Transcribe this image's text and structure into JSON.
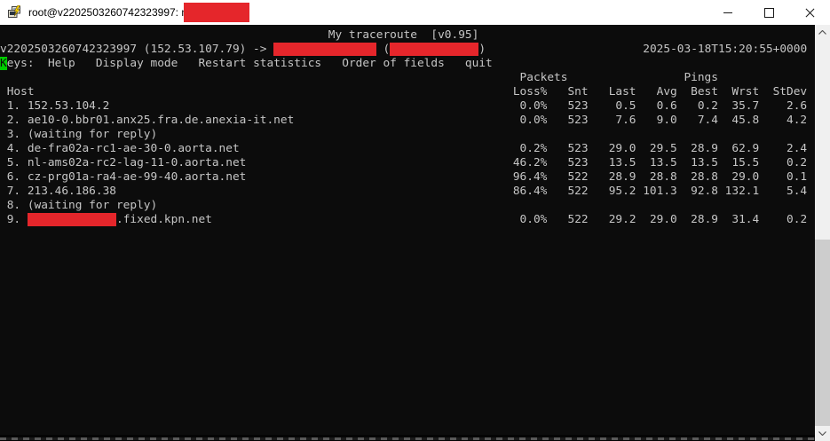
{
  "window": {
    "title": "root@v2202503260742323997: mtr",
    "title_has_redaction": true,
    "icons": {
      "app": "putty-terminal-icon",
      "minimize": "minimize-icon",
      "maximize": "maximize-icon",
      "close": "close-icon",
      "scroll_up": "chevron-up-icon",
      "scroll_down": "chevron-down-icon"
    }
  },
  "terminal": {
    "cols": 118,
    "colors": {
      "bg": "#0c0c0c",
      "fg": "#c6c6c6",
      "cursor": "#00cd00",
      "redact": "#e5262b"
    },
    "app_title": "My traceroute  [v0.95]",
    "source_line": {
      "left": "v2202503260742323997 (152.53.107.79) ->",
      "dest_redact_ch": 15,
      "ip_redact_ch": 13,
      "timestamp": "2025-03-18T15:20:55+0000"
    },
    "keys_line": {
      "cursor_char": "K",
      "rest": "eys:  Help   Display mode   Restart statistics   Order of fields   quit"
    },
    "group_headers": {
      "packets": "Packets",
      "pings": "Pings"
    },
    "columns": {
      "host": "Host",
      "loss": "Loss%",
      "snt": "Snt",
      "last": "Last",
      "avg": "Avg",
      "best": "Best",
      "wrst": "Wrst",
      "stdev": "StDev"
    },
    "rows": [
      {
        "num": "1",
        "host": "152.53.104.2",
        "loss": "0.0%",
        "snt": "523",
        "last": "0.5",
        "avg": "0.6",
        "best": "0.2",
        "wrst": "35.7",
        "stdev": "2.6"
      },
      {
        "num": "2",
        "host": "ae10-0.bbr01.anx25.fra.de.anexia-it.net",
        "loss": "0.0%",
        "snt": "523",
        "last": "7.6",
        "avg": "9.0",
        "best": "7.4",
        "wrst": "45.8",
        "stdev": "4.2"
      },
      {
        "num": "3",
        "host": "(waiting for reply)"
      },
      {
        "num": "4",
        "host": "de-fra02a-rc1-ae-30-0.aorta.net",
        "loss": "0.2%",
        "snt": "523",
        "last": "29.0",
        "avg": "29.5",
        "best": "28.9",
        "wrst": "62.9",
        "stdev": "2.4"
      },
      {
        "num": "5",
        "host": "nl-ams02a-rc2-lag-11-0.aorta.net",
        "loss": "46.2%",
        "snt": "523",
        "last": "13.5",
        "avg": "13.5",
        "best": "13.5",
        "wrst": "15.5",
        "stdev": "0.2"
      },
      {
        "num": "6",
        "host": "cz-prg01a-ra4-ae-99-40.aorta.net",
        "loss": "96.4%",
        "snt": "522",
        "last": "28.9",
        "avg": "28.8",
        "best": "28.8",
        "wrst": "29.0",
        "stdev": "0.1"
      },
      {
        "num": "7",
        "host": "213.46.186.38",
        "loss": "86.4%",
        "snt": "522",
        "last": "95.2",
        "avg": "101.3",
        "best": "92.8",
        "wrst": "132.1",
        "stdev": "5.4"
      },
      {
        "num": "8",
        "host": "(waiting for reply)"
      },
      {
        "num": "9",
        "host_redact_ch": 13,
        "host_suffix": ".fixed.kpn.net",
        "loss": "0.0%",
        "snt": "522",
        "last": "29.2",
        "avg": "29.0",
        "best": "28.9",
        "wrst": "31.4",
        "stdev": "0.2"
      }
    ]
  }
}
